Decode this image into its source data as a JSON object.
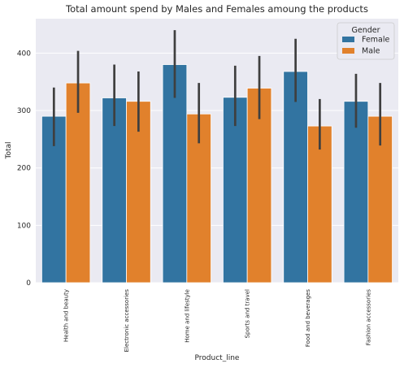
{
  "chart_data": {
    "type": "bar",
    "title": "Total amount spend by Males and Females amoung the products",
    "xlabel": "Product_line",
    "ylabel": "Total",
    "ylim": [
      0,
      460
    ],
    "yticks": [
      0,
      100,
      200,
      300,
      400
    ],
    "grid": true,
    "legend_title": "Gender",
    "legend_position": "top-right",
    "categories": [
      "Health and beauty",
      "Electronic accessories",
      "Home and lifestyle",
      "Sports and travel",
      "Food and beverages",
      "Fashion accessories"
    ],
    "series": [
      {
        "name": "Female",
        "color": "#3274a1",
        "values": [
          290,
          322,
          380,
          323,
          368,
          316
        ],
        "ci_low": [
          238,
          273,
          322,
          273,
          315,
          270
        ],
        "ci_high": [
          340,
          380,
          440,
          378,
          425,
          364
        ]
      },
      {
        "name": "Male",
        "color": "#e1812c",
        "values": [
          348,
          316,
          294,
          339,
          273,
          290
        ],
        "ci_low": [
          296,
          263,
          243,
          285,
          232,
          239
        ],
        "ci_high": [
          404,
          368,
          348,
          395,
          320,
          348
        ]
      }
    ]
  }
}
